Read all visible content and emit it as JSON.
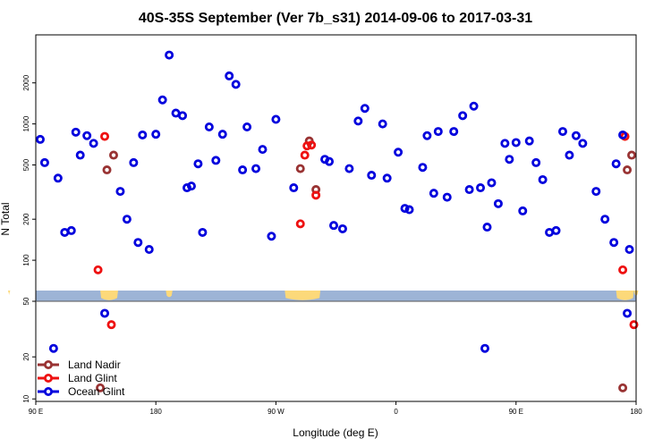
{
  "chart_data": {
    "type": "scatter",
    "title": "40S-35S September (Ver 7b_s31)   2014-09-06 to 2017-03-31",
    "xlabel": "Longitude (deg E)",
    "ylabel": "N Total",
    "xlim": [
      -90,
      180
    ],
    "x_ticks": [
      {
        "value": -90,
        "label": "90 E"
      },
      {
        "value": -36,
        "label": "180"
      },
      {
        "value": 18,
        "label": "90 W"
      },
      {
        "value": 72,
        "label": "0"
      },
      {
        "value": 126,
        "label": "90 E"
      },
      {
        "value": 180,
        "label": "180"
      }
    ],
    "upper_panel": {
      "scale": "log",
      "ylim": [
        50,
        4500
      ],
      "y_ticks": [
        {
          "value": 50,
          "label": "50"
        },
        {
          "value": 100,
          "label": "100"
        },
        {
          "value": 200,
          "label": "200"
        },
        {
          "value": 500,
          "label": "500"
        },
        {
          "value": 1000,
          "label": "1000"
        },
        {
          "value": 2000,
          "label": "2000"
        }
      ]
    },
    "lower_panel": {
      "scale": "log",
      "ylim": [
        9.6,
        50
      ],
      "y_ticks": [
        {
          "value": 10,
          "label": "10"
        },
        {
          "value": 20,
          "label": "20"
        }
      ]
    },
    "map_strip": {
      "ocean_color": "#9db4d6",
      "land_color": "#fcd97a"
    },
    "legend_position": "bottom-left",
    "series": [
      {
        "name": "Land Nadir",
        "color": "#993333",
        "points": [
          {
            "x": -58,
            "y": 460
          },
          {
            "x": -55,
            "y": 590
          },
          {
            "x": 29,
            "y": 470
          },
          {
            "x": 33,
            "y": 750
          },
          {
            "x": 36,
            "y": 330
          },
          {
            "x": 176,
            "y": 460
          },
          {
            "x": 178,
            "y": 590
          },
          {
            "x": -61,
            "y": 12
          },
          {
            "x": 174,
            "y": 12
          }
        ]
      },
      {
        "name": "Land Glint",
        "color": "#ee1111",
        "points": [
          {
            "x": -59,
            "y": 810
          },
          {
            "x": -62,
            "y": 85
          },
          {
            "x": 29,
            "y": 185
          },
          {
            "x": 31,
            "y": 590
          },
          {
            "x": 32,
            "y": 690
          },
          {
            "x": 34,
            "y": 700
          },
          {
            "x": 36,
            "y": 300
          },
          {
            "x": 175,
            "y": 810
          },
          {
            "x": 174,
            "y": 85
          },
          {
            "x": -56,
            "y": 34
          },
          {
            "x": 179,
            "y": 34
          }
        ]
      },
      {
        "name": "Ocean Glint",
        "color": "#0000dd",
        "points": [
          {
            "x": -88,
            "y": 770
          },
          {
            "x": -86,
            "y": 520
          },
          {
            "x": -80,
            "y": 400
          },
          {
            "x": -77,
            "y": 160
          },
          {
            "x": -74,
            "y": 165
          },
          {
            "x": -72,
            "y": 870
          },
          {
            "x": -70,
            "y": 590
          },
          {
            "x": -67,
            "y": 820
          },
          {
            "x": -64,
            "y": 720
          },
          {
            "x": -52,
            "y": 320
          },
          {
            "x": -49,
            "y": 200
          },
          {
            "x": -46,
            "y": 520
          },
          {
            "x": -44,
            "y": 135
          },
          {
            "x": -42,
            "y": 830
          },
          {
            "x": -39,
            "y": 120
          },
          {
            "x": -36,
            "y": 840
          },
          {
            "x": -33,
            "y": 1500
          },
          {
            "x": -30,
            "y": 3200
          },
          {
            "x": -27,
            "y": 1200
          },
          {
            "x": -24,
            "y": 1150
          },
          {
            "x": -22,
            "y": 340
          },
          {
            "x": -20,
            "y": 350
          },
          {
            "x": -17,
            "y": 510
          },
          {
            "x": -15,
            "y": 160
          },
          {
            "x": -12,
            "y": 950
          },
          {
            "x": -9,
            "y": 540
          },
          {
            "x": -6,
            "y": 840
          },
          {
            "x": -3,
            "y": 2250
          },
          {
            "x": 0,
            "y": 1950
          },
          {
            "x": 3,
            "y": 460
          },
          {
            "x": 5,
            "y": 950
          },
          {
            "x": 9,
            "y": 470
          },
          {
            "x": 12,
            "y": 650
          },
          {
            "x": 16,
            "y": 150
          },
          {
            "x": 18,
            "y": 1080
          },
          {
            "x": 26,
            "y": 340
          },
          {
            "x": 40,
            "y": 550
          },
          {
            "x": 42,
            "y": 530
          },
          {
            "x": 44,
            "y": 180
          },
          {
            "x": 48,
            "y": 170
          },
          {
            "x": 51,
            "y": 470
          },
          {
            "x": 55,
            "y": 1050
          },
          {
            "x": 58,
            "y": 1300
          },
          {
            "x": 61,
            "y": 420
          },
          {
            "x": 66,
            "y": 1000
          },
          {
            "x": 68,
            "y": 400
          },
          {
            "x": 73,
            "y": 620
          },
          {
            "x": 76,
            "y": 240
          },
          {
            "x": 78,
            "y": 235
          },
          {
            "x": 84,
            "y": 480
          },
          {
            "x": 86,
            "y": 820
          },
          {
            "x": 89,
            "y": 310
          },
          {
            "x": 91,
            "y": 880
          },
          {
            "x": 95,
            "y": 290
          },
          {
            "x": 98,
            "y": 880
          },
          {
            "x": 102,
            "y": 1150
          },
          {
            "x": 105,
            "y": 330
          },
          {
            "x": 107,
            "y": 1350
          },
          {
            "x": 110,
            "y": 340
          },
          {
            "x": 113,
            "y": 175
          },
          {
            "x": 115,
            "y": 370
          },
          {
            "x": 118,
            "y": 260
          },
          {
            "x": 121,
            "y": 720
          },
          {
            "x": 123,
            "y": 550
          },
          {
            "x": 126,
            "y": 730
          },
          {
            "x": 129,
            "y": 230
          },
          {
            "x": 132,
            "y": 750
          },
          {
            "x": 135,
            "y": 520
          },
          {
            "x": 138,
            "y": 390
          },
          {
            "x": 141,
            "y": 160
          },
          {
            "x": 144,
            "y": 165
          },
          {
            "x": 147,
            "y": 880
          },
          {
            "x": 150,
            "y": 590
          },
          {
            "x": 153,
            "y": 820
          },
          {
            "x": 156,
            "y": 720
          },
          {
            "x": 162,
            "y": 320
          },
          {
            "x": 166,
            "y": 200
          },
          {
            "x": 170,
            "y": 135
          },
          {
            "x": 171,
            "y": 510
          },
          {
            "x": 174,
            "y": 830
          },
          {
            "x": 177,
            "y": 120
          },
          {
            "x": -82,
            "y": 23
          },
          {
            "x": -59,
            "y": 41
          },
          {
            "x": 112,
            "y": 23
          },
          {
            "x": 176,
            "y": 41
          }
        ]
      }
    ]
  }
}
